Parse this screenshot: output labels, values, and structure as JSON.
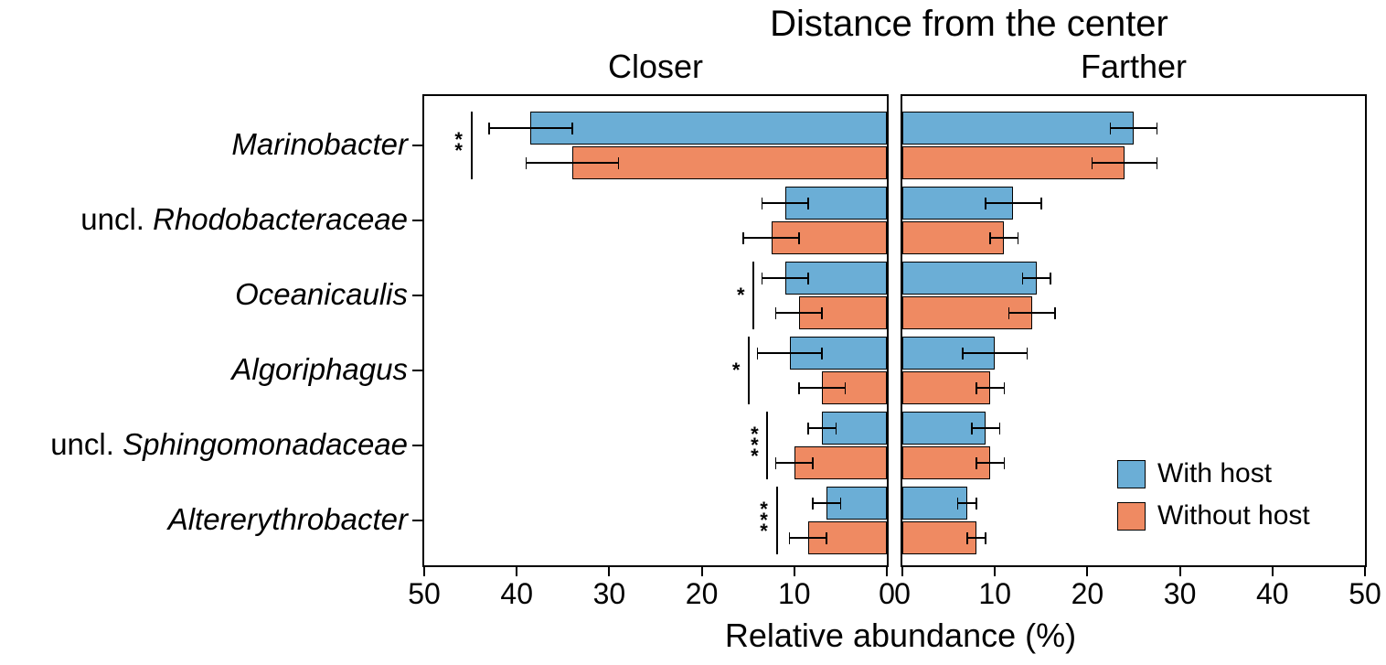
{
  "chart_data": {
    "type": "bar",
    "orientation": "horizontal-diverging",
    "title": "Distance from the center",
    "xlabel": "Relative abundance (%)",
    "axis": {
      "max": 50,
      "ticks": [
        0,
        10,
        20,
        30,
        40,
        50
      ]
    },
    "categories": [
      {
        "prefix": "",
        "name": "Marinobacter"
      },
      {
        "prefix": "uncl. ",
        "name": "Rhodobacteraceae"
      },
      {
        "prefix": "",
        "name": "Oceanicaulis"
      },
      {
        "prefix": "",
        "name": "Algoriphagus"
      },
      {
        "prefix": "uncl. ",
        "name": "Sphingomonadaceae"
      },
      {
        "prefix": "",
        "name": "Altererythrobacter"
      }
    ],
    "legend": [
      {
        "label": "With host",
        "color": "#6BAED6"
      },
      {
        "label": "Without host",
        "color": "#EF8A62"
      }
    ],
    "panels": [
      {
        "label": "Closer",
        "direction": "left",
        "series": [
          {
            "name": "With host",
            "values": [
              38.5,
              11,
              11,
              10.5,
              7,
              6.5
            ],
            "errors": [
              4.5,
              2.5,
              2.5,
              3.5,
              1.5,
              1.5
            ]
          },
          {
            "name": "Without host",
            "values": [
              34,
              12.5,
              9.5,
              7,
              10,
              8.5
            ],
            "errors": [
              5,
              3,
              2.5,
              2.5,
              2,
              2
            ]
          }
        ],
        "significance": [
          {
            "category_index": 0,
            "category": "Marinobacter",
            "stars": "**",
            "at": 45
          },
          {
            "category_index": 2,
            "category": "Oceanicaulis",
            "stars": "*",
            "at": 14.5
          },
          {
            "category_index": 3,
            "category": "Algoriphagus",
            "stars": "*",
            "at": 15
          },
          {
            "category_index": 4,
            "category": "uncl. Sphingomonadaceae",
            "stars": "***",
            "at": 13
          },
          {
            "category_index": 5,
            "category": "Altererythrobacter",
            "stars": "***",
            "at": 12
          }
        ]
      },
      {
        "label": "Farther",
        "direction": "right",
        "series": [
          {
            "name": "With host",
            "values": [
              25,
              12,
              14.5,
              10,
              9,
              7
            ],
            "errors": [
              2.5,
              3,
              1.5,
              3.5,
              1.5,
              1
            ]
          },
          {
            "name": "Without host",
            "values": [
              24,
              11,
              14,
              9.5,
              9.5,
              8
            ],
            "errors": [
              3.5,
              1.5,
              2.5,
              1.5,
              1.5,
              1
            ]
          }
        ],
        "significance": []
      }
    ]
  }
}
